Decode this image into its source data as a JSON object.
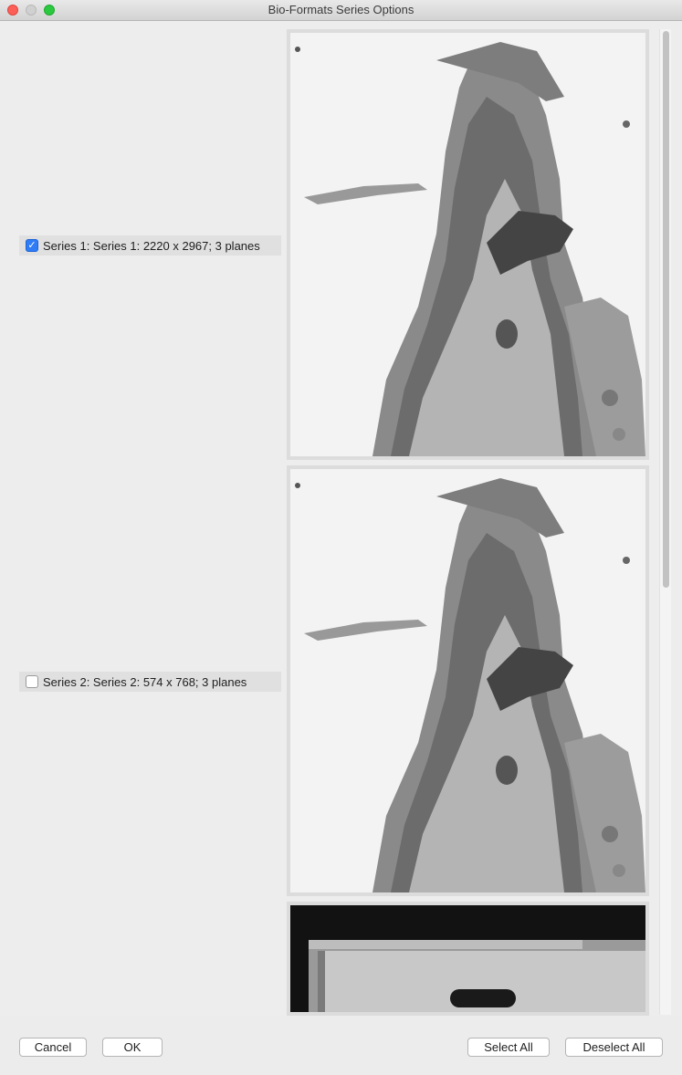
{
  "window": {
    "title": "Bio-Formats Series Options"
  },
  "series": [
    {
      "label": "Series 1: Series 1: 2220 x 2967; 3 planes",
      "checked": true
    },
    {
      "label": "Series 2: Series 2: 574 x 768; 3 planes",
      "checked": false
    }
  ],
  "icons": {
    "checkmark": "✓",
    "close": "close-icon",
    "minimize": "minimize-icon",
    "maximize": "maximize-icon"
  },
  "colors": {
    "checkbox_accent": "#2f7cf6",
    "close_button": "#fc5f57",
    "maximize_button": "#2bc840"
  },
  "buttons": {
    "cancel": "Cancel",
    "ok": "OK",
    "select_all": "Select All",
    "deselect_all": "Deselect All"
  }
}
